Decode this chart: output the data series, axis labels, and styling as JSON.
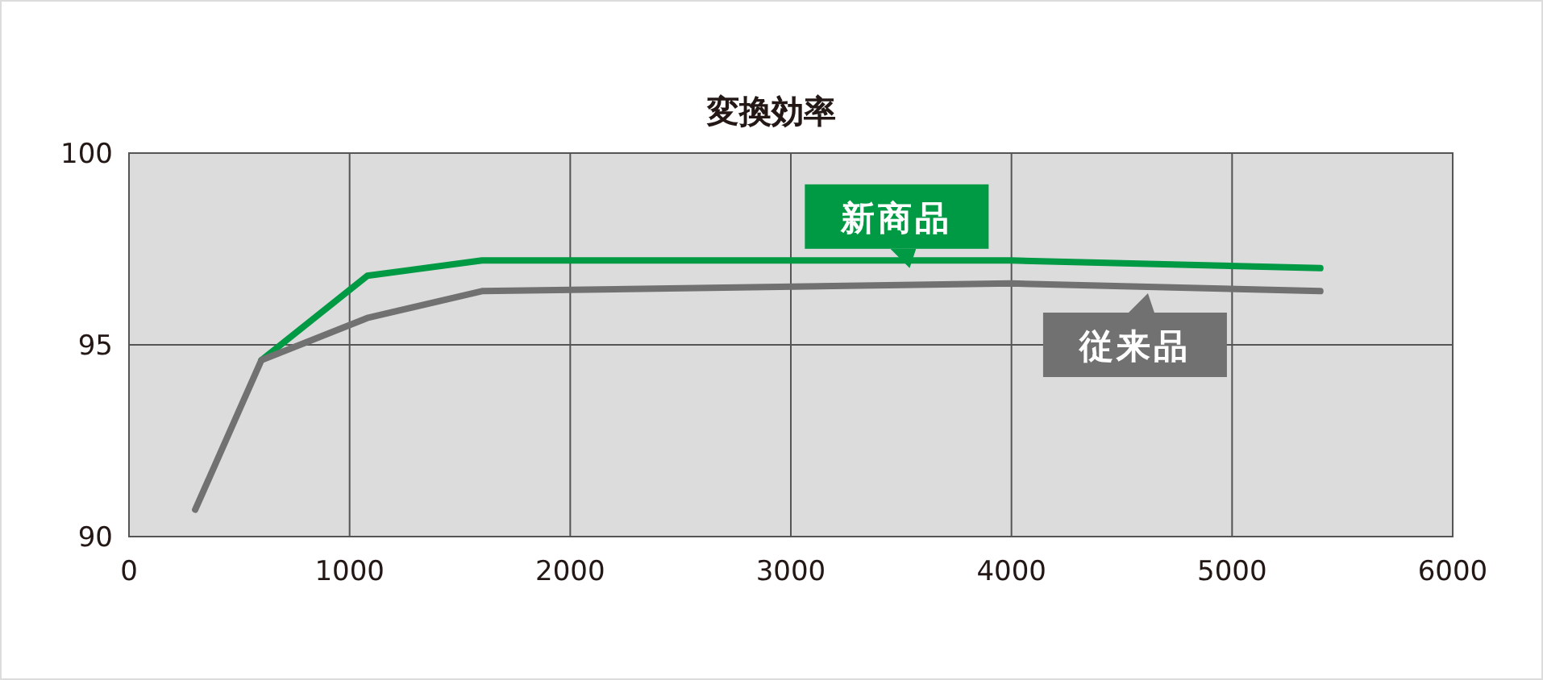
{
  "chart_data": {
    "type": "line",
    "title": "変換効率",
    "xlim": [
      0,
      6000
    ],
    "xticks": [
      0,
      1000,
      2000,
      3000,
      4000,
      5000,
      6000
    ],
    "ylim": [
      90,
      100
    ],
    "yticks": [
      90,
      95,
      100
    ],
    "grid": true,
    "legend": "top right",
    "marker": "none",
    "line_style": "solid",
    "series": [
      {
        "name": "新商品",
        "color": "#009944",
        "x": [
          600,
          1080,
          1600,
          4000,
          5400
        ],
        "values": [
          94.6,
          96.8,
          97.2,
          97.2,
          97.0
        ]
      },
      {
        "name": "従来品",
        "color": "#727171",
        "x": [
          300,
          600,
          1080,
          1600,
          4000,
          5400
        ],
        "values": [
          90.7,
          94.6,
          95.7,
          96.4,
          96.6,
          96.4
        ]
      }
    ]
  }
}
